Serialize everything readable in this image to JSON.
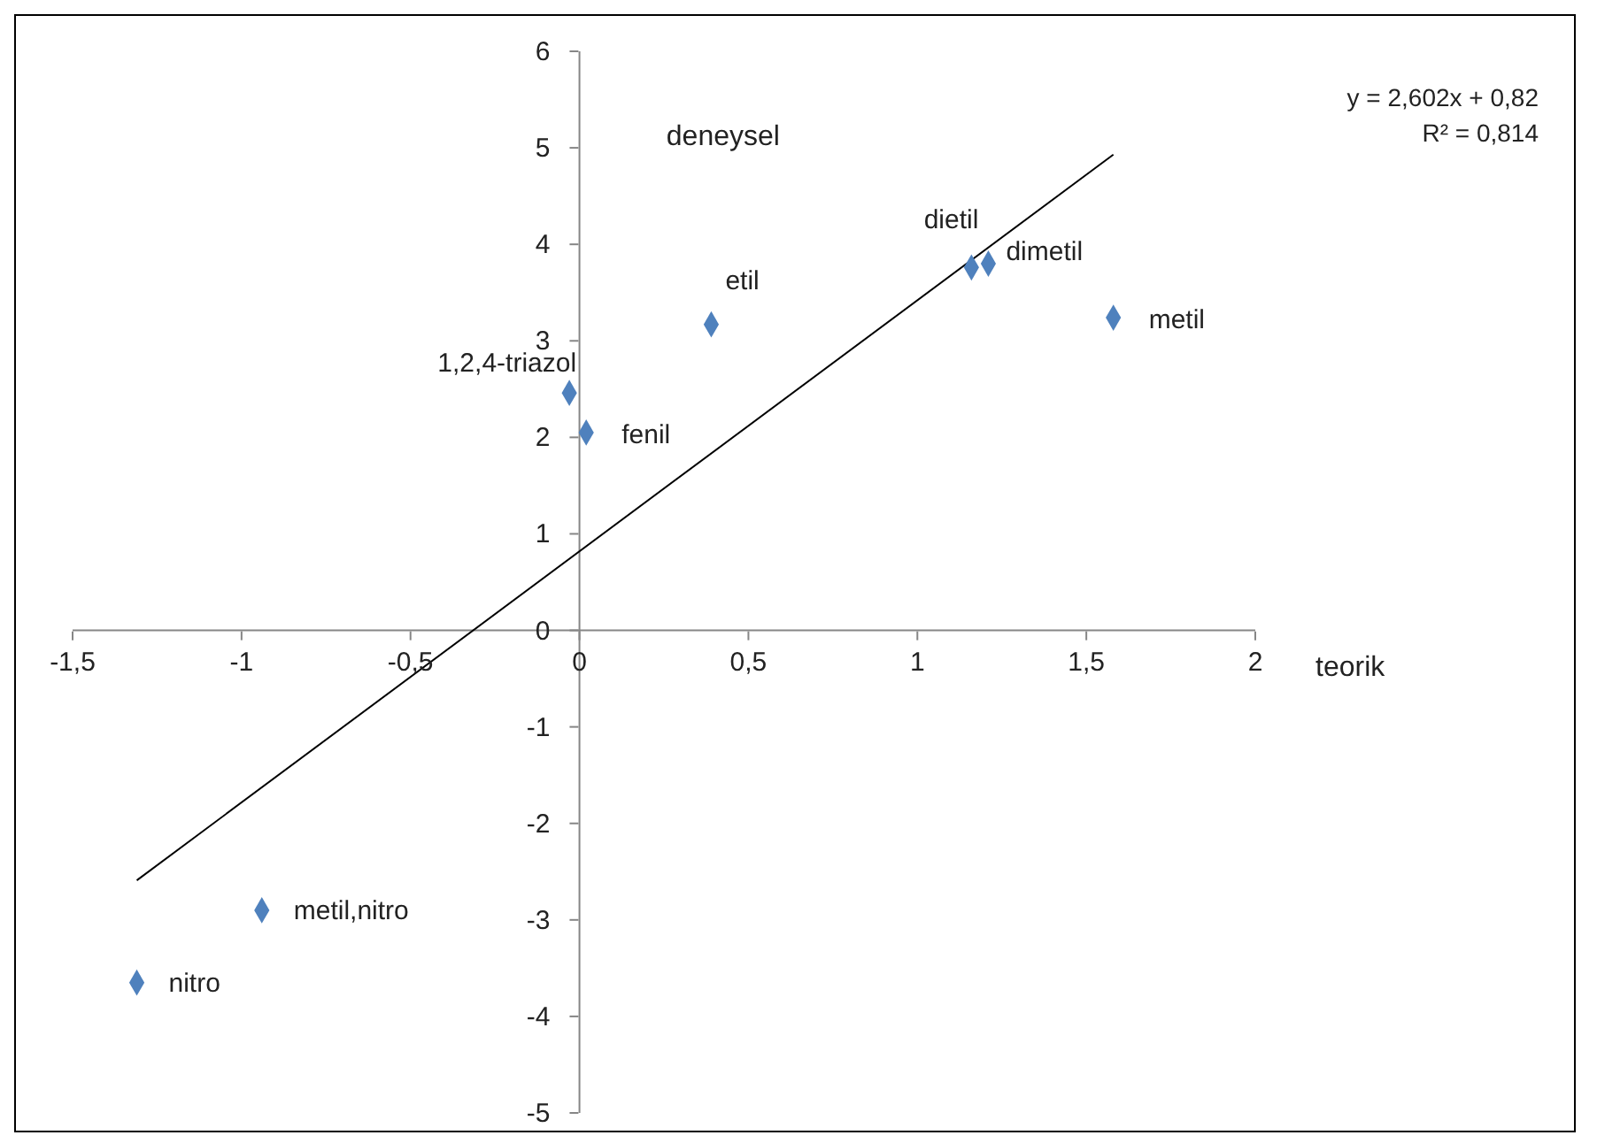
{
  "chart_data": {
    "type": "scatter",
    "xlabel": "teorik",
    "ylabel": "deneysel",
    "x": [
      -1.31,
      -0.94,
      -0.03,
      0.02,
      0.39,
      1.16,
      1.21,
      1.58
    ],
    "series": [
      {
        "type": "scatter",
        "color": "#4f81bd",
        "marker": "diamond",
        "values": [
          -3.65,
          -2.9,
          2.46,
          2.05,
          3.17,
          3.76,
          3.8,
          3.24
        ]
      },
      {
        "type": "line",
        "color": "#000000",
        "marker": "none",
        "x": [
          -1.31,
          1.58
        ],
        "values": [
          -2.59,
          4.93
        ]
      }
    ],
    "annotations": [
      {
        "text": "nitro",
        "x": -1.31,
        "y": -3.65
      },
      {
        "text": "metil,nitro",
        "x": -0.94,
        "y": -2.9
      },
      {
        "text": "1,2,4-triazol",
        "x": -0.03,
        "y": 2.46
      },
      {
        "text": "fenil",
        "x": 0.02,
        "y": 2.05
      },
      {
        "text": "etil",
        "x": 0.39,
        "y": 3.17
      },
      {
        "text": "dietil",
        "x": 1.16,
        "y": 3.76
      },
      {
        "text": "dimetil",
        "x": 1.21,
        "y": 3.8
      },
      {
        "text": "metil",
        "x": 1.58,
        "y": 3.24
      },
      "y = 2,602x + 0,82",
      "R² = 0,814"
    ],
    "xlim": [
      -1.5,
      2
    ],
    "ylim": [
      -5,
      6
    ],
    "xticks": [
      {
        "value": -1.5,
        "label": "-1,5"
      },
      -1,
      {
        "value": -0.5,
        "label": "-0,5"
      },
      0,
      {
        "value": 0.5,
        "label": "0,5"
      },
      1,
      {
        "value": 1.5,
        "label": "1,5"
      },
      2
    ],
    "yticks": [
      -5,
      -4,
      -3,
      -2,
      -1,
      0,
      1,
      2,
      3,
      4,
      5,
      6
    ],
    "grid": false,
    "legend": false
  }
}
